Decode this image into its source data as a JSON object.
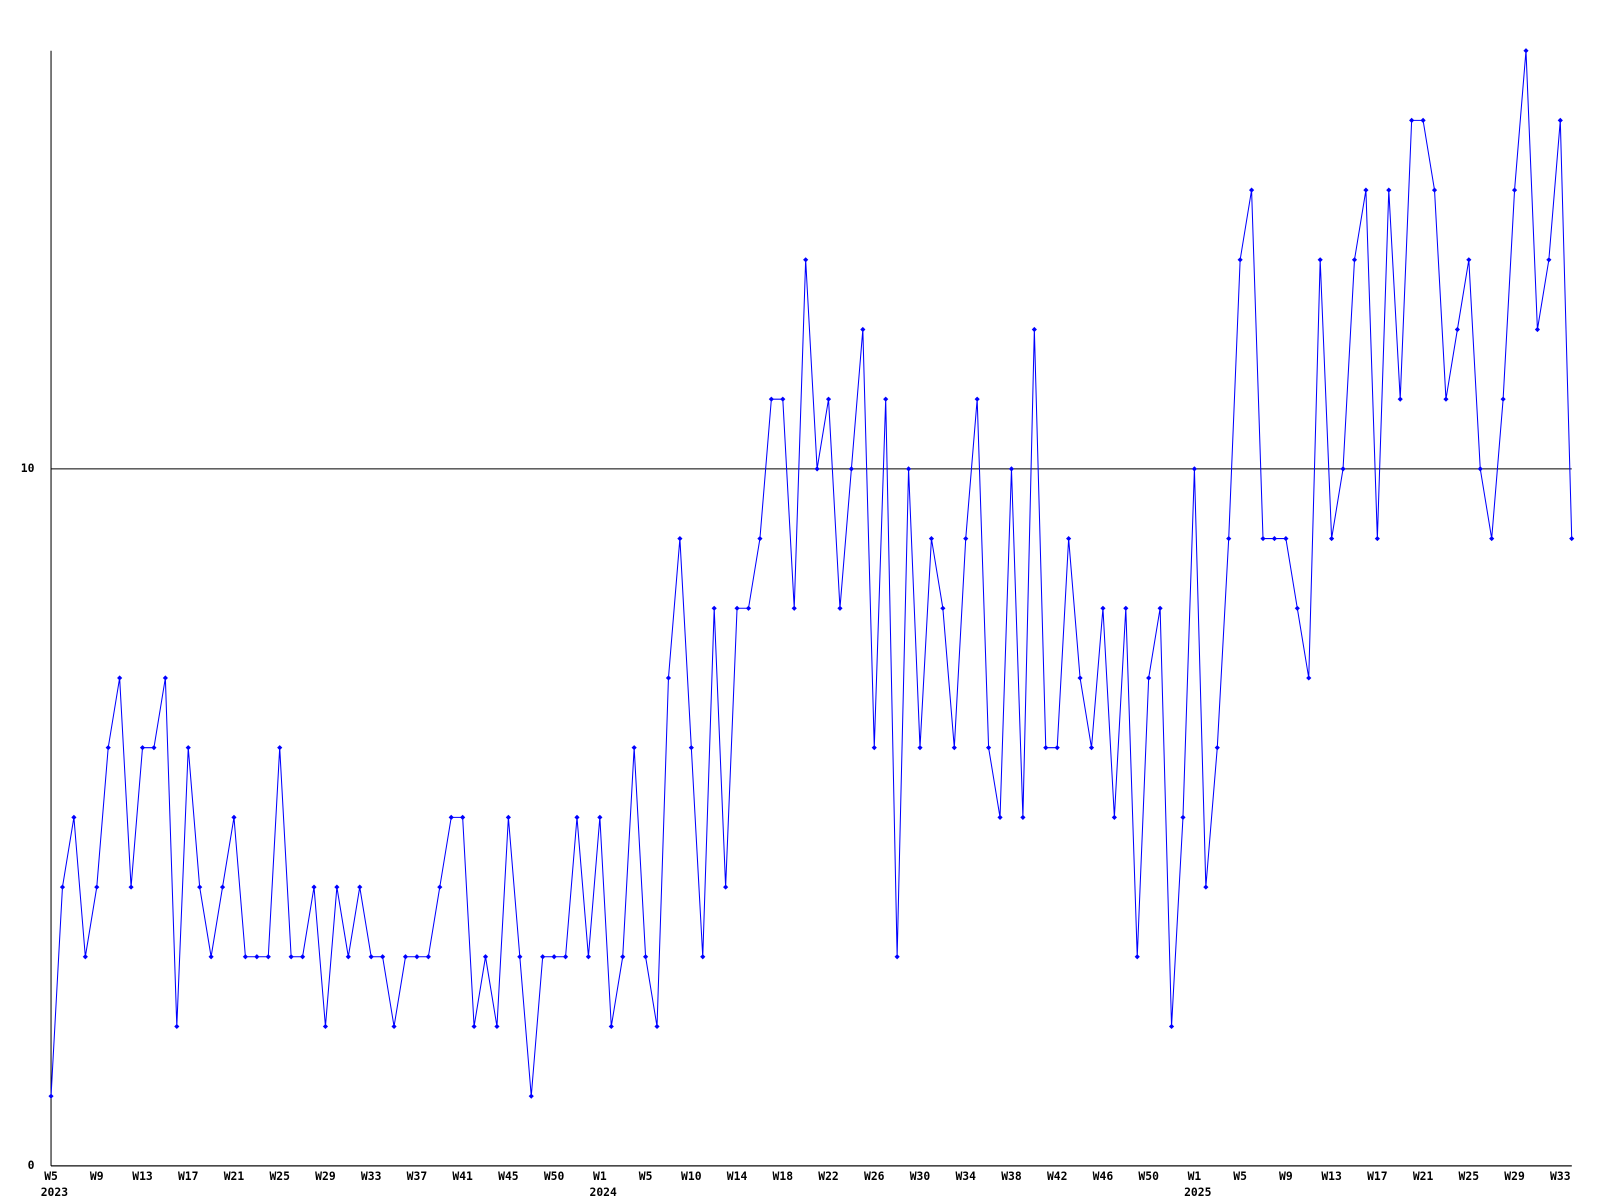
{
  "chart_data": {
    "type": "line",
    "color": "#0000ff",
    "ylim": [
      0,
      16
    ],
    "yticks": [
      0,
      10
    ],
    "grid": true,
    "categories": [
      "W5",
      null,
      null,
      null,
      "W9",
      null,
      null,
      null,
      "W13",
      null,
      null,
      null,
      "W17",
      null,
      null,
      null,
      "W21",
      null,
      null,
      null,
      "W25",
      null,
      null,
      null,
      "W29",
      null,
      null,
      null,
      "W33",
      null,
      null,
      null,
      "W37",
      null,
      null,
      null,
      "W41",
      null,
      null,
      null,
      "W45",
      null,
      null,
      null,
      "W50",
      null,
      null,
      null,
      "W1",
      null,
      null,
      null,
      "W5",
      null,
      null,
      null,
      "W10",
      null,
      null,
      null,
      "W14",
      null,
      null,
      null,
      "W18",
      null,
      null,
      null,
      "W22",
      null,
      null,
      null,
      "W26",
      null,
      null,
      null,
      "W30",
      null,
      null,
      null,
      "W34",
      null,
      null,
      null,
      "W38",
      null,
      null,
      null,
      "W42",
      null,
      null,
      null,
      "W46",
      null,
      null,
      null,
      "W50",
      null,
      null,
      null,
      "W1",
      null,
      null,
      null,
      "W5",
      null,
      null,
      null,
      "W9",
      null,
      null,
      null,
      "W13",
      null,
      null,
      null,
      "W17",
      null,
      null,
      null,
      "W21",
      null,
      null,
      null,
      "W25",
      null,
      null,
      null,
      "W29",
      null,
      null,
      null,
      "W33",
      null
    ],
    "years": [
      "2023",
      null,
      null,
      null,
      null,
      null,
      null,
      null,
      null,
      null,
      null,
      null,
      null,
      null,
      null,
      null,
      null,
      null,
      null,
      null,
      null,
      null,
      null,
      null,
      null,
      null,
      null,
      null,
      null,
      null,
      null,
      null,
      null,
      null,
      null,
      null,
      null,
      null,
      null,
      null,
      null,
      null,
      null,
      null,
      null,
      null,
      null,
      null,
      "2024",
      null,
      null,
      null,
      null,
      null,
      null,
      null,
      null,
      null,
      null,
      null,
      null,
      null,
      null,
      null,
      null,
      null,
      null,
      null,
      null,
      null,
      null,
      null,
      null,
      null,
      null,
      null,
      null,
      null,
      null,
      null,
      null,
      null,
      null,
      null,
      null,
      null,
      null,
      null,
      null,
      null,
      null,
      null,
      null,
      null,
      null,
      null,
      null,
      null,
      null,
      null,
      "2025",
      null,
      null,
      null,
      null,
      null,
      null,
      null,
      null,
      null,
      null,
      null,
      null,
      null,
      null,
      null,
      null,
      null,
      null,
      null,
      null,
      null,
      null,
      null,
      null,
      null,
      null,
      null,
      null,
      null,
      null,
      null,
      null,
      null
    ],
    "values": [
      1,
      4,
      5,
      3,
      4,
      6,
      7,
      4,
      6,
      6,
      7,
      2,
      6,
      4,
      3,
      4,
      5,
      3,
      3,
      3,
      6,
      3,
      3,
      4,
      2,
      4,
      3,
      4,
      3,
      3,
      2,
      3,
      3,
      3,
      4,
      5,
      5,
      2,
      3,
      2,
      5,
      3,
      1,
      3,
      3,
      3,
      5,
      3,
      5,
      2,
      3,
      6,
      3,
      2,
      7,
      9,
      6,
      3,
      8,
      4,
      8,
      8,
      9,
      11,
      11,
      8,
      13,
      10,
      11,
      8,
      10,
      12,
      6,
      11,
      3,
      10,
      6,
      9,
      8,
      6,
      9,
      11,
      6,
      5,
      10,
      5,
      12,
      6,
      6,
      9,
      7,
      6,
      8,
      5,
      8,
      3,
      7,
      8,
      2,
      5,
      10,
      4,
      6,
      9,
      13,
      14,
      9,
      9,
      9,
      8,
      7,
      13,
      9,
      10,
      13,
      14,
      9,
      14,
      11,
      15,
      15,
      14,
      11,
      12,
      13,
      10,
      9,
      11,
      14,
      16,
      12,
      13,
      15,
      9
    ]
  }
}
